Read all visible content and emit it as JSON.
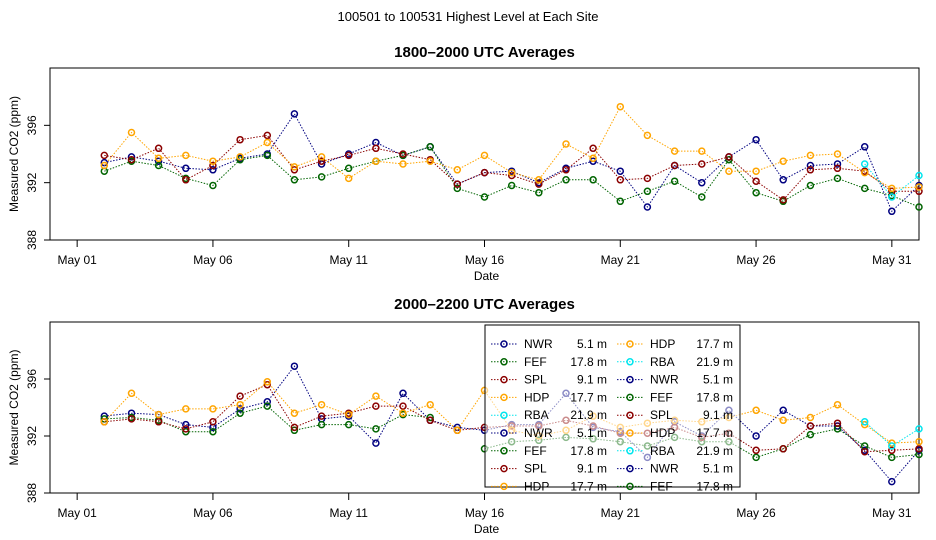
{
  "page_title": "100501  to  100531 Highest Level at Each Site",
  "colors": {
    "NWR": "#000080",
    "FEF": "#006400",
    "SPL": "#8b0000",
    "HDP": "#ffa500",
    "RBA": "#00e5ee"
  },
  "chart_data": [
    {
      "type": "line",
      "title": "1800–2000 UTC Averages",
      "xlabel": "Date",
      "ylabel": "Measured CO2 (ppm)",
      "xlim": [
        0,
        32
      ],
      "ylim": [
        388,
        400
      ],
      "x_ticks": [
        {
          "value": 1,
          "label": "May 01"
        },
        {
          "value": 6,
          "label": "May 06"
        },
        {
          "value": 11,
          "label": "May 11"
        },
        {
          "value": 16,
          "label": "May 16"
        },
        {
          "value": 21,
          "label": "May 21"
        },
        {
          "value": 26,
          "label": "May 26"
        },
        {
          "value": 31,
          "label": "May 31"
        }
      ],
      "y_ticks": [
        388,
        392,
        396
      ],
      "x": [
        2,
        3,
        4,
        5,
        6,
        7,
        8,
        9,
        10,
        11,
        12,
        13,
        14,
        15,
        16,
        17,
        18,
        19,
        20,
        21,
        22,
        23,
        24,
        25,
        26,
        27,
        28,
        29,
        30,
        31,
        32
      ],
      "series": [
        {
          "name": "NWR",
          "values": [
            393.4,
            393.8,
            393.5,
            393.0,
            392.9,
            393.7,
            394.0,
            396.8,
            393.3,
            394.0,
            394.8,
            393.9,
            394.5,
            391.9,
            392.7,
            392.8,
            392.0,
            393.0,
            393.5,
            392.8,
            390.3,
            393.2,
            392.0,
            393.8,
            395.0,
            392.2,
            393.2,
            393.3,
            394.5,
            390.0,
            391.8
          ]
        },
        {
          "name": "FEF",
          "values": [
            392.8,
            393.5,
            393.2,
            392.3,
            391.8,
            393.6,
            393.9,
            392.2,
            392.4,
            393.0,
            393.5,
            393.9,
            394.5,
            391.6,
            391.0,
            391.8,
            391.3,
            392.2,
            392.2,
            390.7,
            391.4,
            392.1,
            391.0,
            393.6,
            391.3,
            390.7,
            391.8,
            392.3,
            391.6,
            391.1,
            390.3
          ]
        },
        {
          "name": "SPL",
          "values": [
            393.9,
            393.6,
            394.4,
            392.2,
            393.2,
            395.0,
            395.3,
            392.9,
            393.5,
            393.9,
            394.4,
            394.0,
            393.6,
            391.9,
            392.7,
            392.5,
            391.9,
            392.9,
            394.4,
            392.2,
            392.3,
            393.2,
            393.3,
            393.8,
            392.1,
            390.8,
            392.9,
            393.0,
            392.8,
            391.4,
            391.4
          ]
        },
        {
          "name": "HDP",
          "values": [
            393.2,
            395.5,
            393.7,
            393.9,
            393.5,
            393.8,
            394.8,
            393.1,
            393.8,
            392.3,
            393.5,
            393.3,
            393.5,
            392.9,
            393.9,
            392.7,
            392.2,
            394.7,
            393.7,
            397.3,
            395.3,
            394.2,
            394.2,
            392.8,
            392.8,
            393.5,
            393.9,
            394.0,
            392.7,
            391.6,
            391.7
          ]
        },
        {
          "name": "RBA",
          "values": [
            null,
            null,
            null,
            null,
            null,
            null,
            null,
            null,
            null,
            null,
            null,
            null,
            null,
            null,
            null,
            null,
            null,
            null,
            null,
            null,
            null,
            null,
            null,
            null,
            null,
            null,
            null,
            null,
            393.3,
            391.0,
            392.5
          ]
        }
      ]
    },
    {
      "type": "line",
      "title": "2000–2200 UTC Averages",
      "xlabel": "Date",
      "ylabel": "Measured CO2 (ppm)",
      "xlim": [
        0,
        32
      ],
      "ylim": [
        388,
        400
      ],
      "x_ticks": [
        {
          "value": 1,
          "label": "May 01"
        },
        {
          "value": 6,
          "label": "May 06"
        },
        {
          "value": 11,
          "label": "May 11"
        },
        {
          "value": 16,
          "label": "May 16"
        },
        {
          "value": 21,
          "label": "May 21"
        },
        {
          "value": 26,
          "label": "May 26"
        },
        {
          "value": 31,
          "label": "May 31"
        }
      ],
      "y_ticks": [
        388,
        392,
        396
      ],
      "x": [
        2,
        3,
        4,
        5,
        6,
        7,
        8,
        9,
        10,
        11,
        12,
        13,
        14,
        15,
        16,
        17,
        18,
        19,
        20,
        21,
        22,
        23,
        24,
        25,
        26,
        27,
        28,
        29,
        30,
        31,
        32
      ],
      "series": [
        {
          "name": "NWR",
          "values": [
            393.4,
            393.6,
            393.5,
            392.8,
            392.6,
            393.9,
            394.4,
            396.9,
            393.2,
            393.4,
            391.5,
            395.0,
            393.1,
            392.6,
            392.4,
            392.8,
            392.8,
            395.0,
            392.6,
            392.3,
            390.5,
            393.0,
            392.0,
            393.8,
            392.0,
            393.8,
            392.7,
            392.7,
            391.0,
            388.8,
            391.0
          ]
        },
        {
          "name": "FEF",
          "values": [
            393.2,
            393.3,
            393.1,
            392.3,
            392.3,
            393.6,
            394.1,
            392.4,
            392.8,
            392.8,
            392.5,
            393.5,
            393.3,
            null,
            391.1,
            391.6,
            391.7,
            391.9,
            391.8,
            391.6,
            391.3,
            391.9,
            391.6,
            391.6,
            390.5,
            391.1,
            392.1,
            392.5,
            391.3,
            390.5,
            390.7
          ]
        },
        {
          "name": "SPL",
          "values": [
            393.0,
            393.2,
            393.0,
            392.5,
            393.0,
            394.8,
            395.6,
            392.6,
            393.4,
            393.6,
            394.1,
            394.1,
            393.1,
            392.4,
            392.6,
            392.7,
            392.7,
            393.1,
            392.7,
            392.2,
            392.2,
            392.6,
            391.9,
            392.2,
            391.0,
            391.1,
            392.7,
            392.9,
            390.9,
            391.0,
            391.1
          ]
        },
        {
          "name": "HDP",
          "values": [
            393.0,
            395.0,
            393.5,
            393.9,
            393.9,
            394.2,
            395.8,
            393.6,
            394.2,
            393.5,
            394.8,
            393.6,
            394.2,
            392.4,
            395.2,
            392.4,
            392.0,
            392.4,
            393.4,
            392.6,
            392.9,
            393.1,
            393.0,
            393.3,
            393.8,
            393.1,
            393.3,
            394.2,
            392.8,
            391.5,
            391.6
          ]
        },
        {
          "name": "RBA",
          "values": [
            null,
            null,
            null,
            null,
            null,
            null,
            null,
            null,
            null,
            null,
            null,
            null,
            null,
            null,
            null,
            null,
            null,
            null,
            null,
            null,
            null,
            null,
            null,
            null,
            null,
            null,
            null,
            null,
            393.0,
            391.3,
            392.5
          ]
        }
      ],
      "legend": {
        "placement": "top-right",
        "entries": [
          {
            "site": "NWR",
            "height": "5.1 m"
          },
          {
            "site": "FEF",
            "height": "17.8 m"
          },
          {
            "site": "SPL",
            "height": "9.1 m"
          },
          {
            "site": "HDP",
            "height": "17.7 m"
          },
          {
            "site": "RBA",
            "height": "21.9 m"
          },
          {
            "site": "NWR",
            "height": "5.1 m"
          },
          {
            "site": "FEF",
            "height": "17.8 m"
          },
          {
            "site": "SPL",
            "height": "9.1 m"
          },
          {
            "site": "HDP",
            "height": "17.7 m"
          },
          {
            "site": "HDP",
            "height": "17.7 m"
          },
          {
            "site": "RBA",
            "height": "21.9 m"
          },
          {
            "site": "NWR",
            "height": "5.1 m"
          },
          {
            "site": "FEF",
            "height": "17.8 m"
          },
          {
            "site": "SPL",
            "height": "9.1 m"
          },
          {
            "site": "HDP",
            "height": "17.7 m"
          },
          {
            "site": "RBA",
            "height": "21.9 m"
          },
          {
            "site": "NWR",
            "height": "5.1 m"
          },
          {
            "site": "FEF",
            "height": "17.8 m"
          }
        ]
      }
    }
  ]
}
